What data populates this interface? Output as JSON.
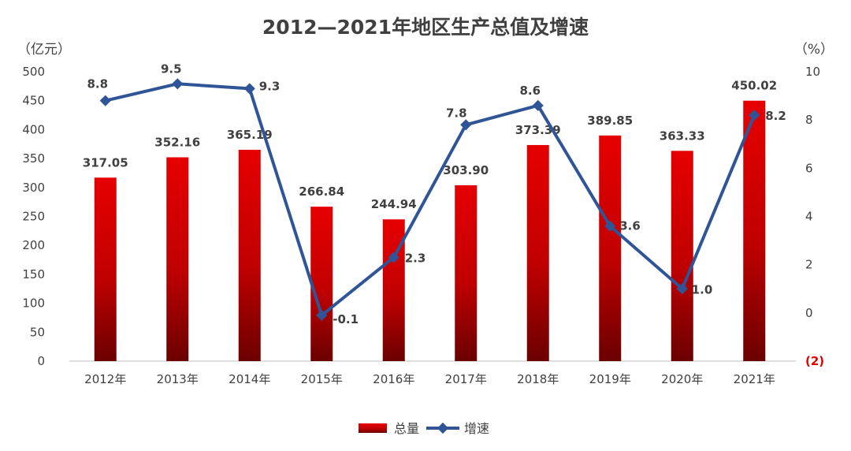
{
  "chart_data": {
    "type": "bar",
    "title": "2012—2021年地区生产总值及增速",
    "categories": [
      "2012年",
      "2013年",
      "2014年",
      "2015年",
      "2016年",
      "2017年",
      "2018年",
      "2019年",
      "2020年",
      "2021年"
    ],
    "series": [
      {
        "name": "总量",
        "type": "bar",
        "axis": "left",
        "values": [
          317.05,
          352.16,
          365.19,
          266.84,
          244.94,
          303.9,
          373.39,
          389.85,
          363.33,
          450.02
        ],
        "labels": [
          "317.05",
          "352.16",
          "365.19",
          "266.84",
          "244.94",
          "303.90",
          "373.39",
          "389.85",
          "363.33",
          "450.02"
        ],
        "color": "#e00000"
      },
      {
        "name": "增速",
        "type": "line",
        "axis": "right",
        "values": [
          8.8,
          9.5,
          9.3,
          -0.1,
          2.3,
          7.8,
          8.6,
          3.6,
          1.0,
          8.2
        ],
        "labels": [
          "8.8",
          "9.5",
          "9.3",
          "-0.1",
          "2.3",
          "7.8",
          "8.6",
          "3.6",
          "1.0",
          "8.2"
        ],
        "color": "#2f5597"
      }
    ],
    "y_left": {
      "unit": "（亿元）",
      "min": 0,
      "max": 500,
      "ticks": [
        "0",
        "50",
        "100",
        "150",
        "200",
        "250",
        "300",
        "350",
        "400",
        "450",
        "500"
      ]
    },
    "y_right": {
      "unit": "（%）",
      "min": -2,
      "max": 10,
      "ticks": [
        "(2)",
        "0",
        "2",
        "4",
        "6",
        "8",
        "10"
      ]
    },
    "legend": {
      "position": "bottom",
      "items": [
        "总量",
        "增速"
      ]
    }
  }
}
